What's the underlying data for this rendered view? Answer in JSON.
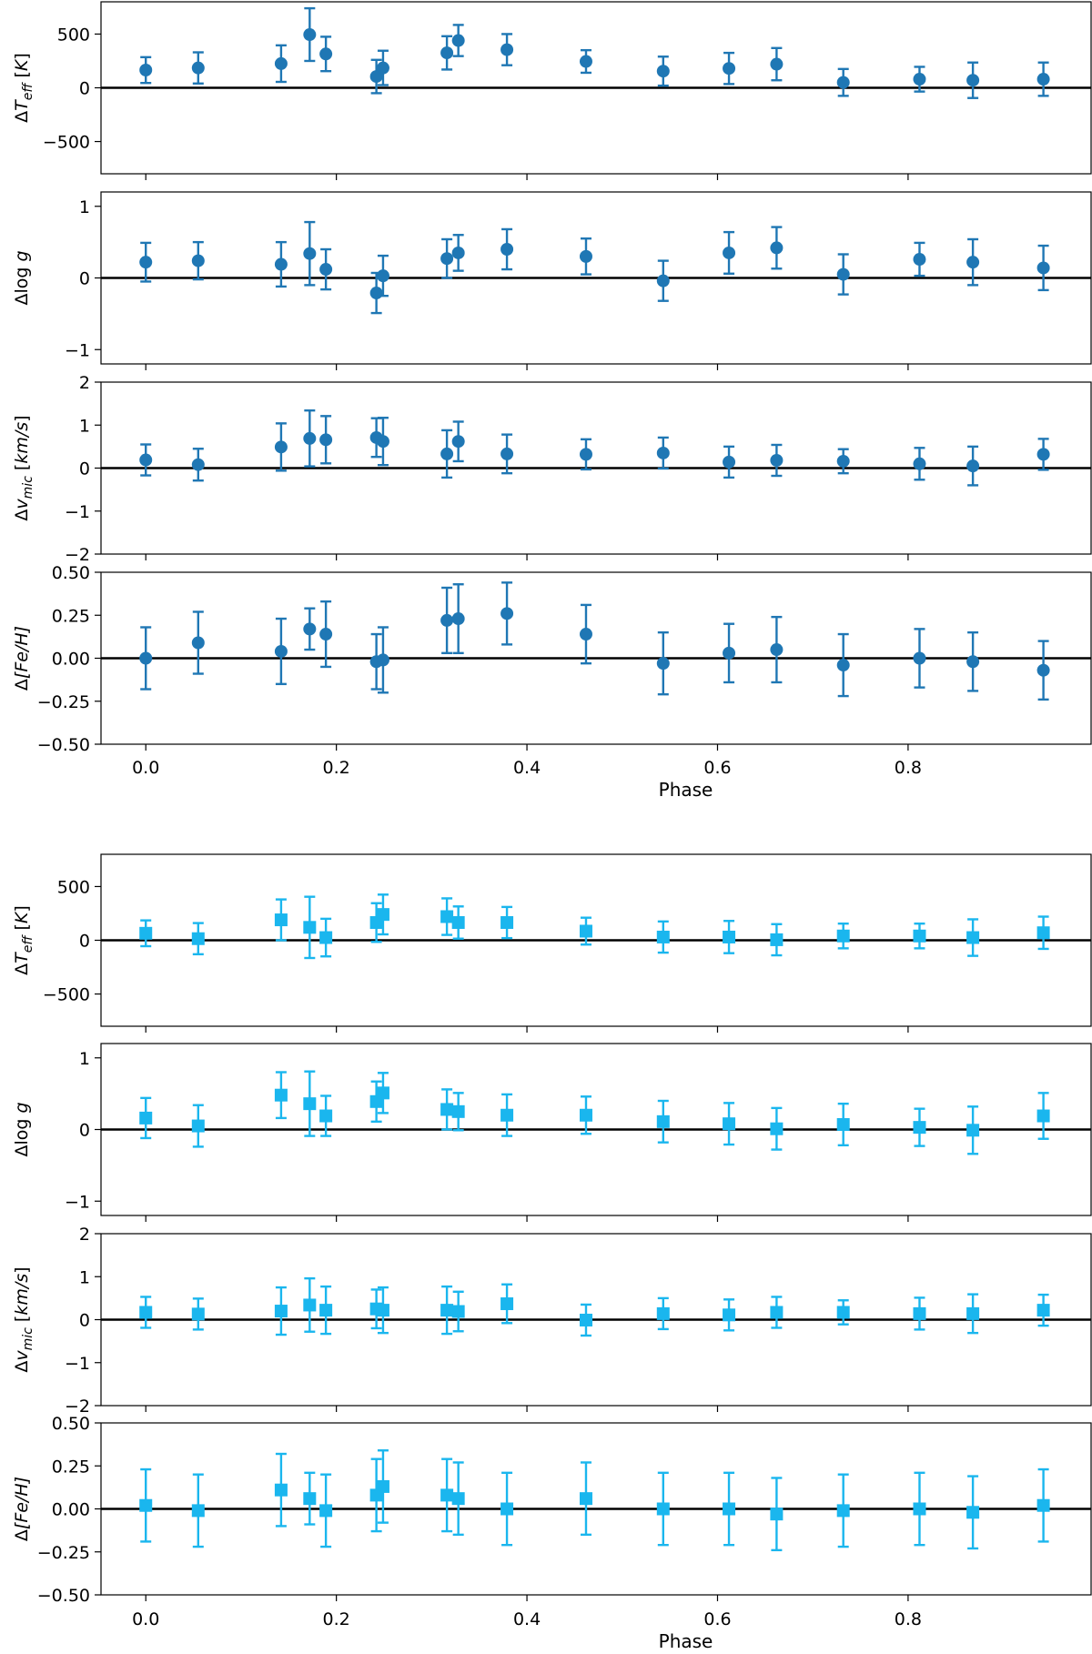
{
  "chart_data": [
    {
      "type": "scatter",
      "group": "top",
      "marker": "circle",
      "color": "#1f77b4",
      "xlabel": "Phase",
      "xlim": [
        -0.047,
        0.993
      ],
      "xticks": [
        "0.0",
        "0.2",
        "0.4",
        "0.6",
        "0.8"
      ],
      "phases": [
        0.0,
        0.055,
        0.142,
        0.172,
        0.189,
        0.242,
        0.249,
        0.316,
        0.328,
        0.379,
        0.462,
        0.543,
        0.612,
        0.662,
        0.732,
        0.812,
        0.868,
        0.942
      ],
      "panels": [
        {
          "ylabel": "ΔT_eff [K]",
          "ylim": [
            -800,
            800
          ],
          "yticks": [
            "500",
            "0",
            "−500"
          ],
          "ytick_values": [
            500,
            0,
            -500
          ],
          "values": [
            165,
            185,
            225,
            495,
            315,
            105,
            185,
            325,
            440,
            355,
            245,
            155,
            180,
            220,
            50,
            80,
            70,
            80
          ],
          "errors": [
            120,
            145,
            170,
            245,
            160,
            155,
            160,
            155,
            145,
            145,
            105,
            135,
            145,
            150,
            125,
            115,
            165,
            155
          ]
        },
        {
          "ylabel": "Δlog g",
          "ylim": [
            -1.2,
            1.2
          ],
          "yticks": [
            "1",
            "0",
            "−1"
          ],
          "ytick_values": [
            1,
            0,
            -1
          ],
          "values": [
            0.22,
            0.24,
            0.19,
            0.34,
            0.12,
            -0.21,
            0.03,
            0.27,
            0.35,
            0.4,
            0.3,
            -0.04,
            0.35,
            0.42,
            0.05,
            0.26,
            0.22,
            0.14
          ],
          "errors": [
            0.27,
            0.26,
            0.31,
            0.44,
            0.28,
            0.28,
            0.28,
            0.27,
            0.25,
            0.28,
            0.25,
            0.28,
            0.29,
            0.29,
            0.28,
            0.23,
            0.32,
            0.31
          ]
        },
        {
          "ylabel": "Δv_mic [km/s]",
          "ylim": [
            -2,
            2
          ],
          "yticks": [
            "2",
            "1",
            "0",
            "−1",
            "−2"
          ],
          "ytick_values": [
            2,
            1,
            0,
            -1,
            -2
          ],
          "values": [
            0.19,
            0.08,
            0.49,
            0.69,
            0.66,
            0.71,
            0.62,
            0.33,
            0.62,
            0.33,
            0.32,
            0.35,
            0.14,
            0.18,
            0.16,
            0.1,
            0.05,
            0.32
          ],
          "errors": [
            0.36,
            0.37,
            0.55,
            0.65,
            0.55,
            0.45,
            0.55,
            0.55,
            0.46,
            0.45,
            0.35,
            0.36,
            0.36,
            0.36,
            0.28,
            0.37,
            0.45,
            0.36
          ]
        },
        {
          "ylabel": "Δ[Fe/H]",
          "ylim": [
            -0.5,
            0.5
          ],
          "yticks": [
            "0.50",
            "0.25",
            "0.00",
            "−0.25",
            "−0.50"
          ],
          "ytick_values": [
            0.5,
            0.25,
            0.0,
            -0.25,
            -0.5
          ],
          "values": [
            0.0,
            0.09,
            0.04,
            0.17,
            0.14,
            -0.02,
            -0.01,
            0.22,
            0.23,
            0.26,
            0.14,
            -0.03,
            0.03,
            0.05,
            -0.04,
            0.0,
            -0.02,
            -0.07
          ],
          "errors": [
            0.18,
            0.18,
            0.19,
            0.12,
            0.19,
            0.16,
            0.19,
            0.19,
            0.2,
            0.18,
            0.17,
            0.18,
            0.17,
            0.19,
            0.18,
            0.17,
            0.17,
            0.17
          ]
        }
      ]
    },
    {
      "type": "scatter",
      "group": "bottom",
      "marker": "square",
      "color": "#1ab6ee",
      "xlabel": "Phase",
      "xlim": [
        -0.047,
        0.993
      ],
      "xticks": [
        "0.0",
        "0.2",
        "0.4",
        "0.6",
        "0.8"
      ],
      "phases": [
        0.0,
        0.055,
        0.142,
        0.172,
        0.189,
        0.242,
        0.249,
        0.316,
        0.328,
        0.379,
        0.462,
        0.543,
        0.612,
        0.662,
        0.732,
        0.812,
        0.868,
        0.942
      ],
      "panels": [
        {
          "ylabel": "ΔT_eff [K]",
          "ylim": [
            -800,
            800
          ],
          "yticks": [
            "500",
            "0",
            "−500"
          ],
          "ytick_values": [
            500,
            0,
            -500
          ],
          "values": [
            65,
            15,
            190,
            120,
            25,
            165,
            240,
            220,
            165,
            165,
            85,
            30,
            30,
            5,
            40,
            40,
            25,
            70
          ],
          "errors": [
            120,
            145,
            190,
            285,
            175,
            180,
            185,
            170,
            150,
            145,
            125,
            145,
            150,
            145,
            115,
            115,
            170,
            150
          ]
        },
        {
          "ylabel": "Δlog g",
          "ylim": [
            -1.2,
            1.2
          ],
          "yticks": [
            "1",
            "0",
            "−1"
          ],
          "ytick_values": [
            1,
            0,
            -1
          ],
          "values": [
            0.16,
            0.05,
            0.48,
            0.36,
            0.19,
            0.39,
            0.51,
            0.28,
            0.25,
            0.2,
            0.2,
            0.11,
            0.08,
            0.01,
            0.07,
            0.03,
            -0.01,
            0.19
          ],
          "errors": [
            0.28,
            0.29,
            0.32,
            0.45,
            0.28,
            0.28,
            0.28,
            0.28,
            0.26,
            0.29,
            0.26,
            0.29,
            0.29,
            0.29,
            0.29,
            0.26,
            0.33,
            0.32
          ]
        },
        {
          "ylabel": "Δv_mic [km/s]",
          "ylim": [
            -2,
            2
          ],
          "yticks": [
            "2",
            "1",
            "0",
            "−1",
            "−2"
          ],
          "ytick_values": [
            2,
            1,
            0,
            -1,
            -2
          ],
          "values": [
            0.17,
            0.13,
            0.2,
            0.34,
            0.22,
            0.25,
            0.22,
            0.22,
            0.19,
            0.37,
            -0.01,
            0.14,
            0.11,
            0.17,
            0.17,
            0.14,
            0.14,
            0.22
          ],
          "errors": [
            0.36,
            0.36,
            0.55,
            0.62,
            0.55,
            0.45,
            0.53,
            0.55,
            0.46,
            0.45,
            0.36,
            0.36,
            0.36,
            0.36,
            0.28,
            0.37,
            0.45,
            0.36
          ]
        },
        {
          "ylabel": "Δ[Fe/H]",
          "ylim": [
            -0.5,
            0.5
          ],
          "yticks": [
            "0.50",
            "0.25",
            "0.00",
            "−0.25",
            "−0.50"
          ],
          "ytick_values": [
            0.5,
            0.25,
            0.0,
            -0.25,
            -0.5
          ],
          "values": [
            0.02,
            -0.01,
            0.11,
            0.06,
            -0.01,
            0.08,
            0.13,
            0.08,
            0.06,
            0.0,
            0.06,
            0.0,
            0.0,
            -0.03,
            -0.01,
            0.0,
            -0.02,
            0.02
          ],
          "errors": [
            0.21,
            0.21,
            0.21,
            0.15,
            0.21,
            0.21,
            0.21,
            0.21,
            0.21,
            0.21,
            0.21,
            0.21,
            0.21,
            0.21,
            0.21,
            0.21,
            0.21,
            0.21
          ]
        }
      ]
    }
  ]
}
